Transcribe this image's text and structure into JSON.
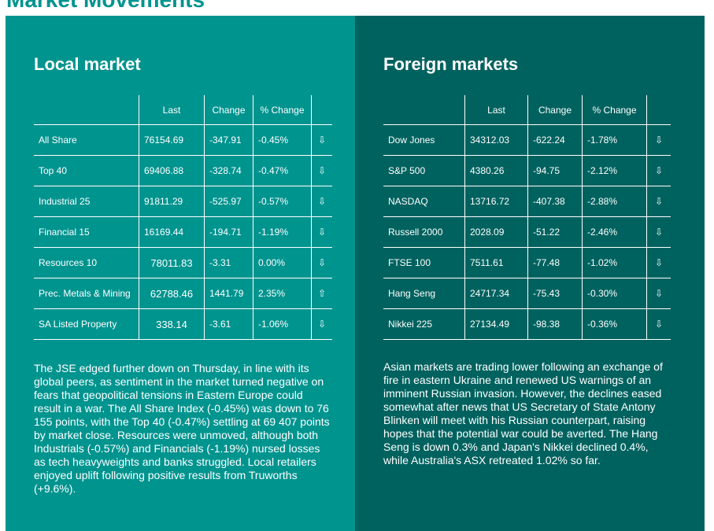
{
  "page_title": "Market Movements",
  "local": {
    "heading": "Local market",
    "columns": [
      "Last",
      "Change",
      "% Change"
    ],
    "rows": [
      {
        "name": "All Share",
        "last": "76154.69",
        "change": "-347.91",
        "pct": "-0.45%",
        "arrow": "⇩"
      },
      {
        "name": "Top 40",
        "last": "69406.88",
        "change": "-328.74",
        "pct": "-0.47%",
        "arrow": "⇩"
      },
      {
        "name": "Industrial 25",
        "last": "91811.29",
        "change": "-525.97",
        "pct": "-0.57%",
        "arrow": "⇩"
      },
      {
        "name": "Financial 15",
        "last": "16169.44",
        "change": "-194.71",
        "pct": "-1.19%",
        "arrow": "⇩"
      },
      {
        "name": "Resources 10",
        "last": "78011.83",
        "change": "-3.31",
        "pct": "0.00%",
        "arrow": "⇩"
      },
      {
        "name": "Prec. Metals & Mining",
        "last": "62788.46",
        "change": "1441.79",
        "pct": "2.35%",
        "arrow": "⇧"
      },
      {
        "name": "SA Listed Property",
        "last": "338.14",
        "change": "-3.61",
        "pct": "-1.06%",
        "arrow": "⇩"
      }
    ],
    "commentary": "The JSE edged further down on Thursday, in line with its global peers, as sentiment in the market turned negative on fears that geopolitical tensions in Eastern Europe could result in a war. The All Share Index (-0.45%) was down to 76 155 points, with the Top 40 (-0.47%) settling at 69 407 points by market close. Resources were unmoved, although both Industrials (-0.57%) and Financials (-1.19%) nursed losses as tech heavyweights and banks struggled. Local retailers enjoyed uplift following positive results from Truworths (+9.6%)."
  },
  "foreign": {
    "heading": "Foreign markets",
    "columns": [
      "Last",
      "Change",
      "% Change"
    ],
    "rows": [
      {
        "name": "Dow Jones",
        "last": "34312.03",
        "change": "-622.24",
        "pct": "-1.78%",
        "arrow": "⇩"
      },
      {
        "name": "S&P 500",
        "last": "4380.26",
        "change": "-94.75",
        "pct": "-2.12%",
        "arrow": "⇩"
      },
      {
        "name": "NASDAQ",
        "last": "13716.72",
        "change": "-407.38",
        "pct": "-2.88%",
        "arrow": "⇩"
      },
      {
        "name": "Russell 2000",
        "last": "2028.09",
        "change": "-51.22",
        "pct": "-2.46%",
        "arrow": "⇩"
      },
      {
        "name": "FTSE 100",
        "last": "7511.61",
        "change": "-77.48",
        "pct": "-1.02%",
        "arrow": "⇩"
      },
      {
        "name": "Hang Seng",
        "last": "24717.34",
        "change": "-75.43",
        "pct": "-0.30%",
        "arrow": "⇩"
      },
      {
        "name": "Nikkei 225",
        "last": "27134.49",
        "change": "-98.38",
        "pct": "-0.36%",
        "arrow": "⇩"
      }
    ],
    "commentary": "Asian markets are trading lower following an exchange of fire in eastern Ukraine and renewed US warnings of an imminent Russian invasion. However, the declines eased somewhat after news that US Secretary of State Antony Blinken will meet with his Russian counterpart, raising hopes that the potential war could be averted. The Hang Seng is down 0.3% and Japan's Nikkei declined 0.4%, while Australia's ASX retreated 1.02% so far."
  },
  "colors": {
    "title": "#00948f",
    "local_bg": "#00948f",
    "foreign_bg": "#00625f",
    "text": "#ffffff"
  }
}
